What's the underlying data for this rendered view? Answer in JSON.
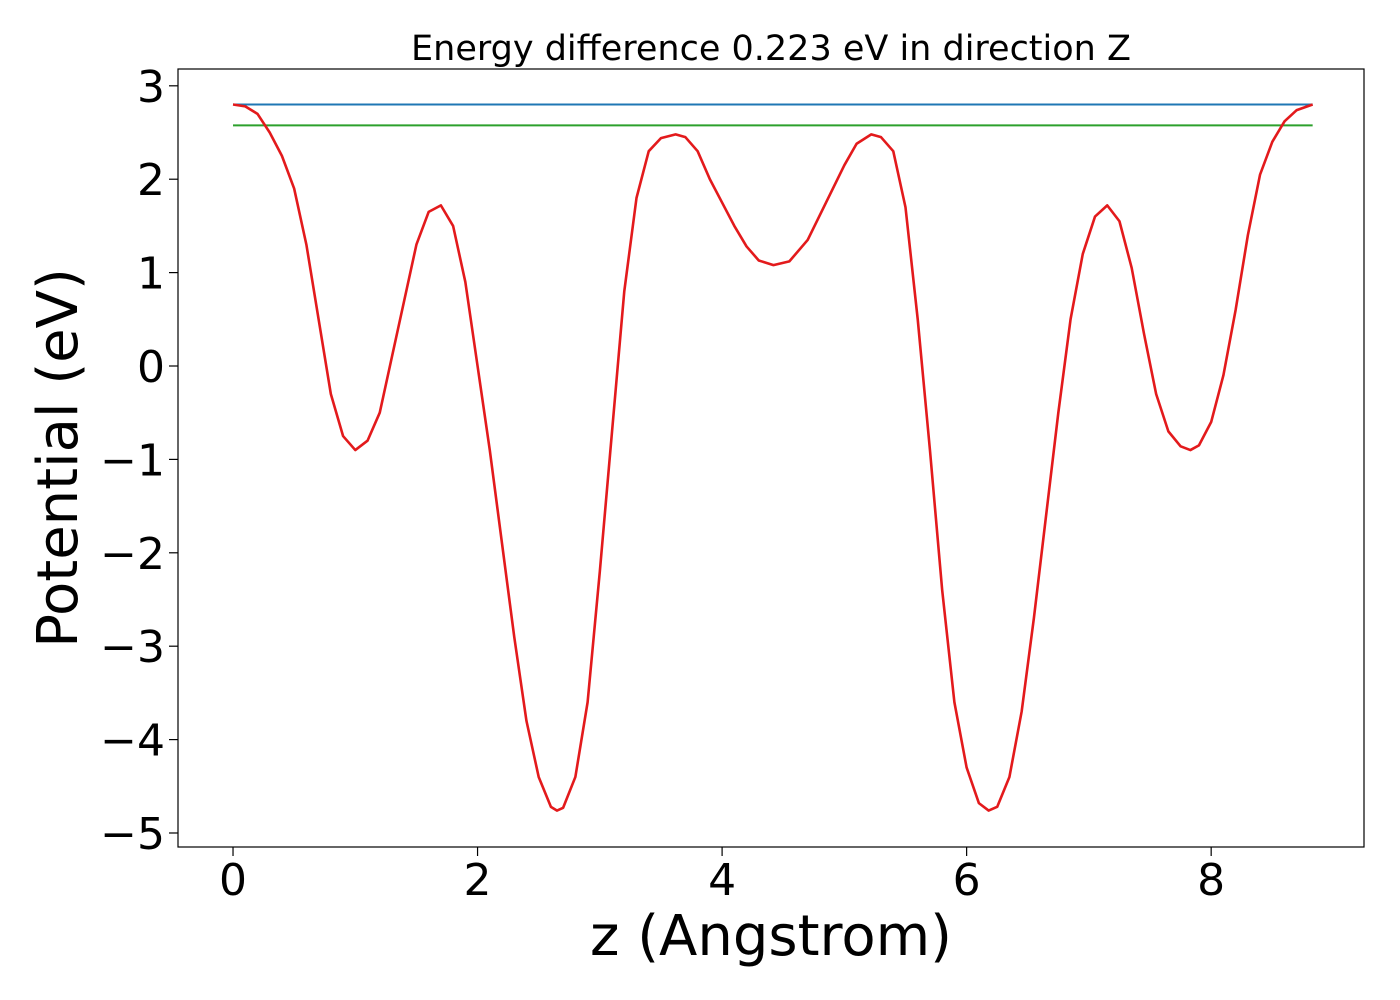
{
  "chart_data": {
    "type": "line",
    "title": "Energy difference 0.223 eV in direction Z",
    "xlabel": "z (Angstrom)",
    "ylabel": "Potential (eV)",
    "xlim": [
      -0.45,
      9.25
    ],
    "ylim": [
      -5.15,
      3.18
    ],
    "x_ticks": [
      0,
      2,
      4,
      6,
      8
    ],
    "x_tick_labels": [
      "0",
      "2",
      "4",
      "6",
      "8"
    ],
    "y_ticks": [
      3,
      2,
      1,
      0,
      -1,
      -2,
      -3,
      -4,
      -5
    ],
    "y_tick_labels": [
      "3",
      "2",
      "1",
      "0",
      "−1",
      "−2",
      "−3",
      "−4",
      "−5"
    ],
    "grid": false,
    "legend": "none",
    "series": [
      {
        "color": "#1f77b4",
        "points": [
          [
            0.0,
            2.8
          ],
          [
            8.83,
            2.8
          ]
        ]
      },
      {
        "color": "#2ca02c",
        "points": [
          [
            0.0,
            2.577
          ],
          [
            8.83,
            2.577
          ]
        ]
      },
      {
        "color": "#e31a1c",
        "points": [
          [
            0.0,
            2.8
          ],
          [
            0.1,
            2.78
          ],
          [
            0.2,
            2.7
          ],
          [
            0.3,
            2.5
          ],
          [
            0.4,
            2.25
          ],
          [
            0.5,
            1.9
          ],
          [
            0.6,
            1.3
          ],
          [
            0.7,
            0.5
          ],
          [
            0.8,
            -0.3
          ],
          [
            0.9,
            -0.75
          ],
          [
            1.0,
            -0.9
          ],
          [
            1.1,
            -0.8
          ],
          [
            1.2,
            -0.5
          ],
          [
            1.3,
            0.1
          ],
          [
            1.4,
            0.7
          ],
          [
            1.5,
            1.3
          ],
          [
            1.6,
            1.65
          ],
          [
            1.7,
            1.72
          ],
          [
            1.8,
            1.5
          ],
          [
            1.9,
            0.9
          ],
          [
            2.0,
            0.0
          ],
          [
            2.1,
            -0.9
          ],
          [
            2.2,
            -1.9
          ],
          [
            2.3,
            -2.9
          ],
          [
            2.4,
            -3.8
          ],
          [
            2.5,
            -4.4
          ],
          [
            2.6,
            -4.72
          ],
          [
            2.65,
            -4.76
          ],
          [
            2.7,
            -4.73
          ],
          [
            2.8,
            -4.4
          ],
          [
            2.9,
            -3.6
          ],
          [
            3.0,
            -2.2
          ],
          [
            3.1,
            -0.7
          ],
          [
            3.2,
            0.8
          ],
          [
            3.3,
            1.8
          ],
          [
            3.4,
            2.3
          ],
          [
            3.5,
            2.44
          ],
          [
            3.62,
            2.48
          ],
          [
            3.7,
            2.45
          ],
          [
            3.8,
            2.3
          ],
          [
            3.9,
            2.0
          ],
          [
            4.0,
            1.75
          ],
          [
            4.1,
            1.5
          ],
          [
            4.2,
            1.28
          ],
          [
            4.3,
            1.13
          ],
          [
            4.42,
            1.08
          ],
          [
            4.55,
            1.12
          ],
          [
            4.7,
            1.35
          ],
          [
            4.85,
            1.75
          ],
          [
            5.0,
            2.15
          ],
          [
            5.1,
            2.38
          ],
          [
            5.22,
            2.48
          ],
          [
            5.3,
            2.45
          ],
          [
            5.4,
            2.3
          ],
          [
            5.5,
            1.7
          ],
          [
            5.6,
            0.5
          ],
          [
            5.7,
            -0.9
          ],
          [
            5.8,
            -2.4
          ],
          [
            5.9,
            -3.6
          ],
          [
            6.0,
            -4.3
          ],
          [
            6.1,
            -4.68
          ],
          [
            6.18,
            -4.76
          ],
          [
            6.25,
            -4.72
          ],
          [
            6.35,
            -4.4
          ],
          [
            6.45,
            -3.7
          ],
          [
            6.55,
            -2.7
          ],
          [
            6.65,
            -1.6
          ],
          [
            6.75,
            -0.5
          ],
          [
            6.85,
            0.5
          ],
          [
            6.95,
            1.2
          ],
          [
            7.05,
            1.6
          ],
          [
            7.15,
            1.72
          ],
          [
            7.25,
            1.55
          ],
          [
            7.35,
            1.05
          ],
          [
            7.45,
            0.35
          ],
          [
            7.55,
            -0.3
          ],
          [
            7.65,
            -0.7
          ],
          [
            7.75,
            -0.86
          ],
          [
            7.83,
            -0.9
          ],
          [
            7.9,
            -0.85
          ],
          [
            8.0,
            -0.6
          ],
          [
            8.1,
            -0.1
          ],
          [
            8.2,
            0.6
          ],
          [
            8.3,
            1.4
          ],
          [
            8.4,
            2.05
          ],
          [
            8.5,
            2.4
          ],
          [
            8.6,
            2.62
          ],
          [
            8.7,
            2.74
          ],
          [
            8.83,
            2.8
          ]
        ]
      }
    ]
  }
}
